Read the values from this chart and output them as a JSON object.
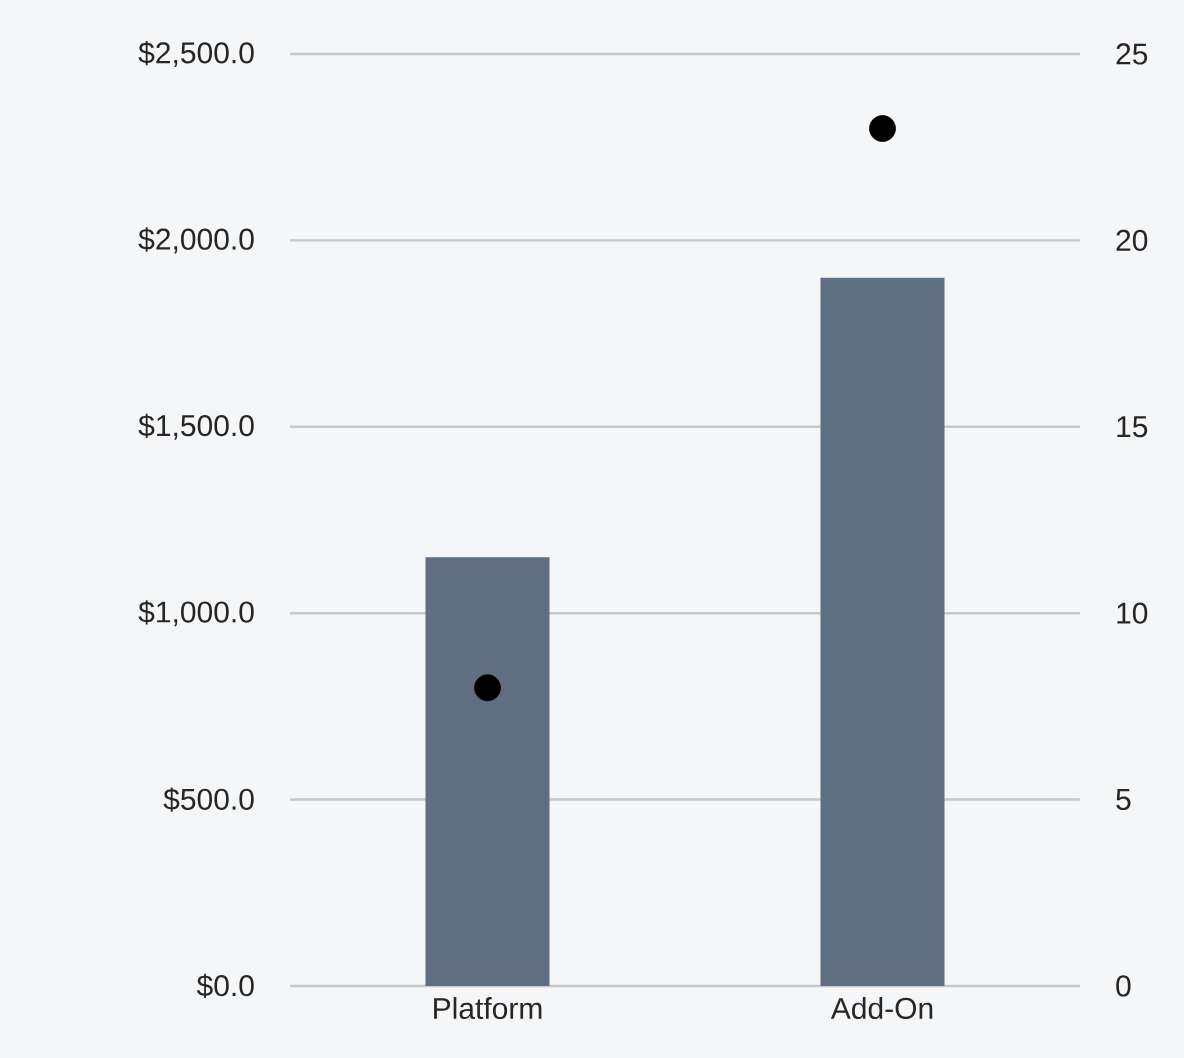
{
  "chart_data": {
    "type": "bar",
    "categories": [
      "Platform",
      "Add-On"
    ],
    "series": [
      {
        "type": "bar",
        "color": "#5f6e80",
        "values": [
          1150,
          1900
        ]
      },
      {
        "type": "scatter",
        "axis": "y2",
        "color": "#000000",
        "marker": "circle",
        "values": [
          8,
          23
        ]
      }
    ],
    "grid": "y",
    "ylim": [
      0,
      2500
    ],
    "yticks": [
      {
        "value": 0,
        "label": "$0.0"
      },
      {
        "value": 500,
        "label": "$500.0"
      },
      {
        "value": 1000,
        "label": "$1,000.0"
      },
      {
        "value": 1500,
        "label": "$1,500.0"
      },
      {
        "value": 2000,
        "label": "$2,000.0"
      },
      {
        "value": 2500,
        "label": "$2,500.0"
      }
    ],
    "y2lim": [
      0,
      25
    ],
    "y2ticks": [
      0,
      5,
      10,
      15,
      20,
      25
    ]
  }
}
